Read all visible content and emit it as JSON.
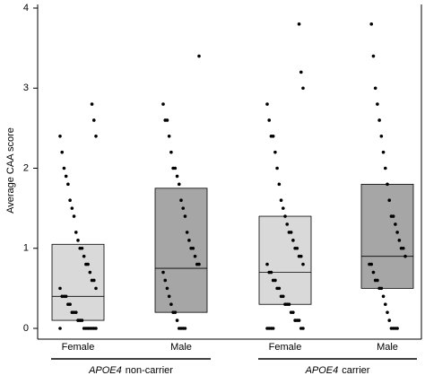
{
  "chart_data": {
    "type": "box",
    "ylabel": "Average CAA score",
    "ylim": [
      0,
      4
    ],
    "yticks": [
      0,
      1,
      2,
      3,
      4
    ],
    "categories": [
      "Female",
      "Male",
      "Female",
      "Male"
    ],
    "groups": [
      {
        "gene": "APOE4",
        "label": "non-carrier"
      },
      {
        "gene": "APOE4",
        "label": "carrier"
      }
    ],
    "boxes": [
      {
        "q1": 0.1,
        "median": 0.4,
        "q3": 1.05,
        "color": "#d9d9d9"
      },
      {
        "q1": 0.2,
        "median": 0.75,
        "q3": 1.75,
        "color": "#a6a6a6"
      },
      {
        "q1": 0.3,
        "median": 0.7,
        "q3": 1.4,
        "color": "#d9d9d9"
      },
      {
        "q1": 0.5,
        "median": 0.9,
        "q3": 1.8,
        "color": "#a6a6a6"
      }
    ],
    "point_color": "#000000",
    "points": [
      [
        0,
        0,
        0,
        0,
        0,
        0,
        0,
        0,
        0.1,
        0.1,
        0.1,
        0.2,
        0.2,
        0.2,
        0.3,
        0.3,
        0.4,
        0.4,
        0.4,
        0.5,
        0.5,
        0.6,
        0.6,
        0.7,
        0.8,
        0.8,
        0.9,
        1,
        1,
        1.1,
        1.2,
        1.4,
        1.5,
        1.6,
        1.8,
        1.9,
        2,
        2.2,
        2.4,
        2.4,
        2.6,
        2.8
      ],
      [
        0,
        0,
        0,
        0,
        0.1,
        0.2,
        0.2,
        0.3,
        0.4,
        0.5,
        0.6,
        0.7,
        0.8,
        0.8,
        0.9,
        1,
        1,
        1.1,
        1.2,
        1.4,
        1.5,
        1.6,
        1.8,
        1.9,
        2,
        2,
        2.2,
        2.4,
        2.6,
        2.6,
        2.8,
        3.4
      ],
      [
        0,
        0,
        0,
        0,
        0,
        0,
        0.1,
        0.1,
        0.1,
        0.2,
        0.2,
        0.3,
        0.3,
        0.3,
        0.4,
        0.4,
        0.5,
        0.5,
        0.6,
        0.6,
        0.7,
        0.7,
        0.8,
        0.8,
        0.9,
        0.9,
        1,
        1,
        1.1,
        1.2,
        1.2,
        1.3,
        1.4,
        1.5,
        1.6,
        1.8,
        2,
        2.2,
        2.4,
        2.4,
        2.6,
        2.8,
        3,
        3.2,
        3.8
      ],
      [
        0,
        0,
        0,
        0,
        0.1,
        0.2,
        0.3,
        0.4,
        0.5,
        0.5,
        0.6,
        0.6,
        0.7,
        0.8,
        0.8,
        0.9,
        1,
        1,
        1.1,
        1.2,
        1.3,
        1.4,
        1.4,
        1.6,
        1.8,
        2,
        2.2,
        2.4,
        2.6,
        2.8,
        3,
        3.4,
        3.8
      ]
    ]
  }
}
